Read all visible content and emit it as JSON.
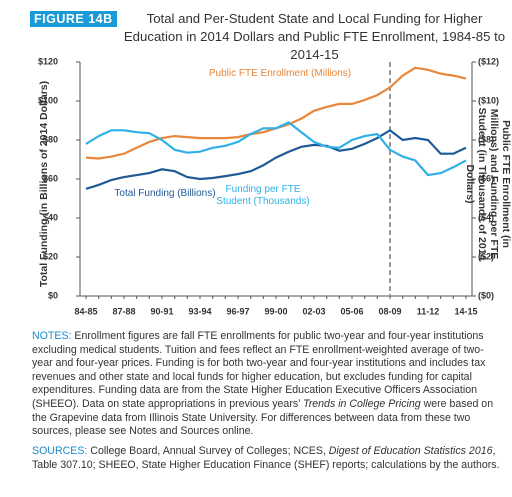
{
  "figure_label": "FIGURE 14B",
  "chart_data": {
    "type": "line",
    "title": "Total and Per-Student State and Local Funding for Higher Education in 2014 Dollars and Public FTE Enrollment, 1984-85 to 2014-15",
    "y_label": "Total Funding (in Billions of 2014 Dollars)",
    "y2_label": "Public FTE Enrollment (in Millions) and Funding per FTE Student (in Thousands of 2014 Dollars)",
    "categories": [
      "84-85",
      null,
      null,
      "87-88",
      null,
      null,
      "90-91",
      null,
      null,
      "93-94",
      null,
      null,
      "96-97",
      null,
      null,
      "99-00",
      null,
      null,
      "02-03",
      null,
      null,
      "05-06",
      null,
      null,
      "08-09",
      null,
      null,
      "11-12",
      null,
      null,
      "14-15"
    ],
    "vline": "08-09",
    "grid": false,
    "ylim": [
      0,
      120
    ],
    "yticks": [
      {
        "value": 0,
        "label": "$0"
      },
      {
        "value": 20,
        "label": "$20"
      },
      {
        "value": 40,
        "label": "$40"
      },
      {
        "value": 60,
        "label": "$60"
      },
      {
        "value": 80,
        "label": "$80"
      },
      {
        "value": 100,
        "label": "$100"
      },
      {
        "value": 120,
        "label": "$120"
      }
    ],
    "y2lim": [
      0,
      12
    ],
    "y2ticks": [
      {
        "value": 0,
        "label": "($0)"
      },
      {
        "value": 2,
        "label": "($2)"
      },
      {
        "value": 4,
        "label": "($4)"
      },
      {
        "value": 6,
        "label": "($6)"
      },
      {
        "value": 8,
        "label": "($8)"
      },
      {
        "value": 10,
        "label": "($10)"
      },
      {
        "value": 12,
        "label": "($12)"
      }
    ],
    "series": [
      {
        "name": "Public FTE Enrollment (Millions)",
        "color": "#e8863a",
        "axis": "y2",
        "values": [
          7.1,
          7.05,
          7.15,
          7.3,
          7.6,
          7.9,
          8.1,
          8.2,
          8.15,
          8.1,
          8.1,
          8.1,
          8.15,
          8.3,
          8.4,
          8.6,
          8.8,
          9.1,
          9.5,
          9.7,
          9.85,
          9.85,
          10.05,
          10.3,
          10.7,
          11.3,
          11.7,
          11.6,
          11.4,
          11.3,
          11.15
        ]
      },
      {
        "name": "Total Funding (Billions)",
        "color": "#1f5a96",
        "values": [
          55,
          57,
          59.5,
          61,
          62,
          63,
          65,
          64,
          61,
          60,
          60.5,
          61.5,
          62.5,
          64,
          67,
          71,
          74,
          76.5,
          77.5,
          77,
          74.5,
          75.5,
          78,
          81,
          85,
          80,
          81,
          80,
          73,
          73,
          76
        ]
      },
      {
        "name": "Funding per FTE Student (Thousands)",
        "color": "#2fb0e8",
        "axis": "y2",
        "values": [
          7.8,
          8.2,
          8.5,
          8.5,
          8.4,
          8.35,
          8.0,
          7.5,
          7.35,
          7.4,
          7.6,
          7.7,
          7.9,
          8.3,
          8.6,
          8.6,
          8.9,
          8.4,
          7.9,
          7.65,
          7.6,
          8.0,
          8.2,
          8.3,
          7.5,
          7.15,
          6.95,
          6.2,
          6.3,
          6.6,
          6.95
        ]
      }
    ]
  },
  "notes": {
    "label": "NOTES:",
    "parts": [
      {
        "text": " Enrollment figures are fall FTE enrollments for public two-year and four-year institutions excluding medical students. Tuition and fees reflect an FTE enrollment-weighted average of two-year and four-year prices. Funding is for both two-year and four-year institutions and includes tax revenues and other state and local funds for higher education, but excludes funding for capital expenditures. Funding data are from the State Higher Education Executive Officers Association (SHEEO). Data on state appropriations in previous years’ ",
        "italic": false
      },
      {
        "text": "Trends in College Pricing",
        "italic": true
      },
      {
        "text": " were based on the Grapevine data from Illinois State University. For differences between data from these two sources, please see Notes and Sources online.",
        "italic": false
      }
    ]
  },
  "sources": {
    "label": "SOURCES:",
    "parts": [
      {
        "text": " College Board, Annual Survey of Colleges; NCES, ",
        "italic": false
      },
      {
        "text": "Digest of Education Statistics 2016",
        "italic": true
      },
      {
        "text": ", Table 307.10; SHEEO, State Higher Education Finance (SHEF) reports; calculations by the authors.",
        "italic": false
      }
    ]
  }
}
